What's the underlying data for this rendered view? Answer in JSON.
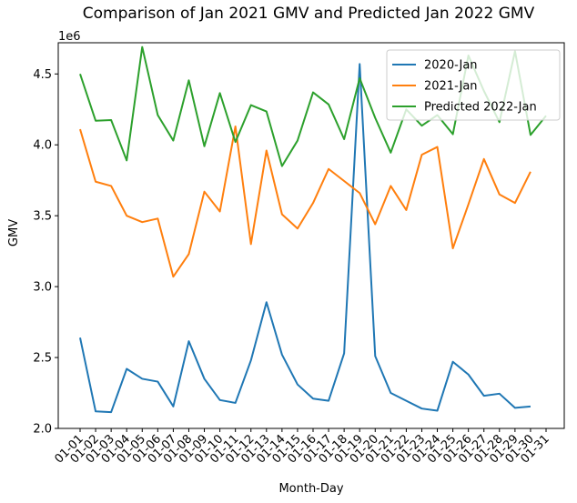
{
  "chart_data": {
    "type": "line",
    "title": "Comparison of Jan 2021 GMV and Predicted Jan 2022 GMV",
    "xlabel": "Month-Day",
    "ylabel": "GMV",
    "y_multiplier_label": "1e6",
    "ylim": [
      2.0,
      4.72
    ],
    "yticks": [
      2.0,
      2.5,
      3.0,
      3.5,
      4.0,
      4.5
    ],
    "ytick_labels": [
      "2.0",
      "2.5",
      "3.0",
      "3.5",
      "4.0",
      "4.5"
    ],
    "grid": false,
    "legend_position": "top-right",
    "categories": [
      "01-01",
      "01-02",
      "01-03",
      "01-04",
      "01-05",
      "01-06",
      "01-07",
      "01-08",
      "01-09",
      "01-10",
      "01-11",
      "01-12",
      "01-13",
      "01-14",
      "01-15",
      "01-16",
      "01-17",
      "01-18",
      "01-19",
      "01-20",
      "01-21",
      "01-22",
      "01-23",
      "01-24",
      "01-25",
      "01-26",
      "01-27",
      "01-28",
      "01-29",
      "01-30",
      "01-31"
    ],
    "series": [
      {
        "name": "2020-Jan",
        "color": "#1f77b4",
        "values": [
          2.64,
          2.12,
          2.115,
          2.42,
          2.35,
          2.33,
          2.155,
          2.615,
          2.35,
          2.2,
          2.18,
          2.48,
          2.89,
          2.52,
          2.31,
          2.21,
          2.195,
          2.53,
          4.57,
          2.51,
          2.25,
          2.195,
          2.14,
          2.125,
          2.47,
          2.38,
          2.23,
          2.245,
          2.145,
          2.155,
          null
        ]
      },
      {
        "name": "2021-Jan",
        "color": "#ff7f0e",
        "values": [
          4.11,
          3.74,
          3.71,
          3.5,
          3.455,
          3.48,
          3.07,
          3.23,
          3.67,
          3.53,
          4.13,
          3.3,
          3.96,
          3.51,
          3.41,
          3.59,
          3.83,
          3.745,
          3.66,
          3.44,
          3.71,
          3.54,
          3.93,
          3.985,
          3.27,
          3.58,
          3.9,
          3.65,
          3.59,
          3.81,
          null
        ]
      },
      {
        "name": "Predicted 2022-Jan",
        "color": "#2ca02c",
        "values": [
          4.5,
          4.17,
          4.175,
          3.89,
          4.69,
          4.21,
          4.03,
          4.455,
          3.99,
          4.365,
          4.02,
          4.28,
          4.235,
          3.85,
          4.03,
          4.37,
          4.285,
          4.04,
          4.47,
          4.19,
          3.945,
          4.25,
          4.135,
          4.21,
          4.075,
          4.63,
          4.38,
          4.16,
          4.66,
          4.07,
          4.205
        ]
      }
    ]
  }
}
